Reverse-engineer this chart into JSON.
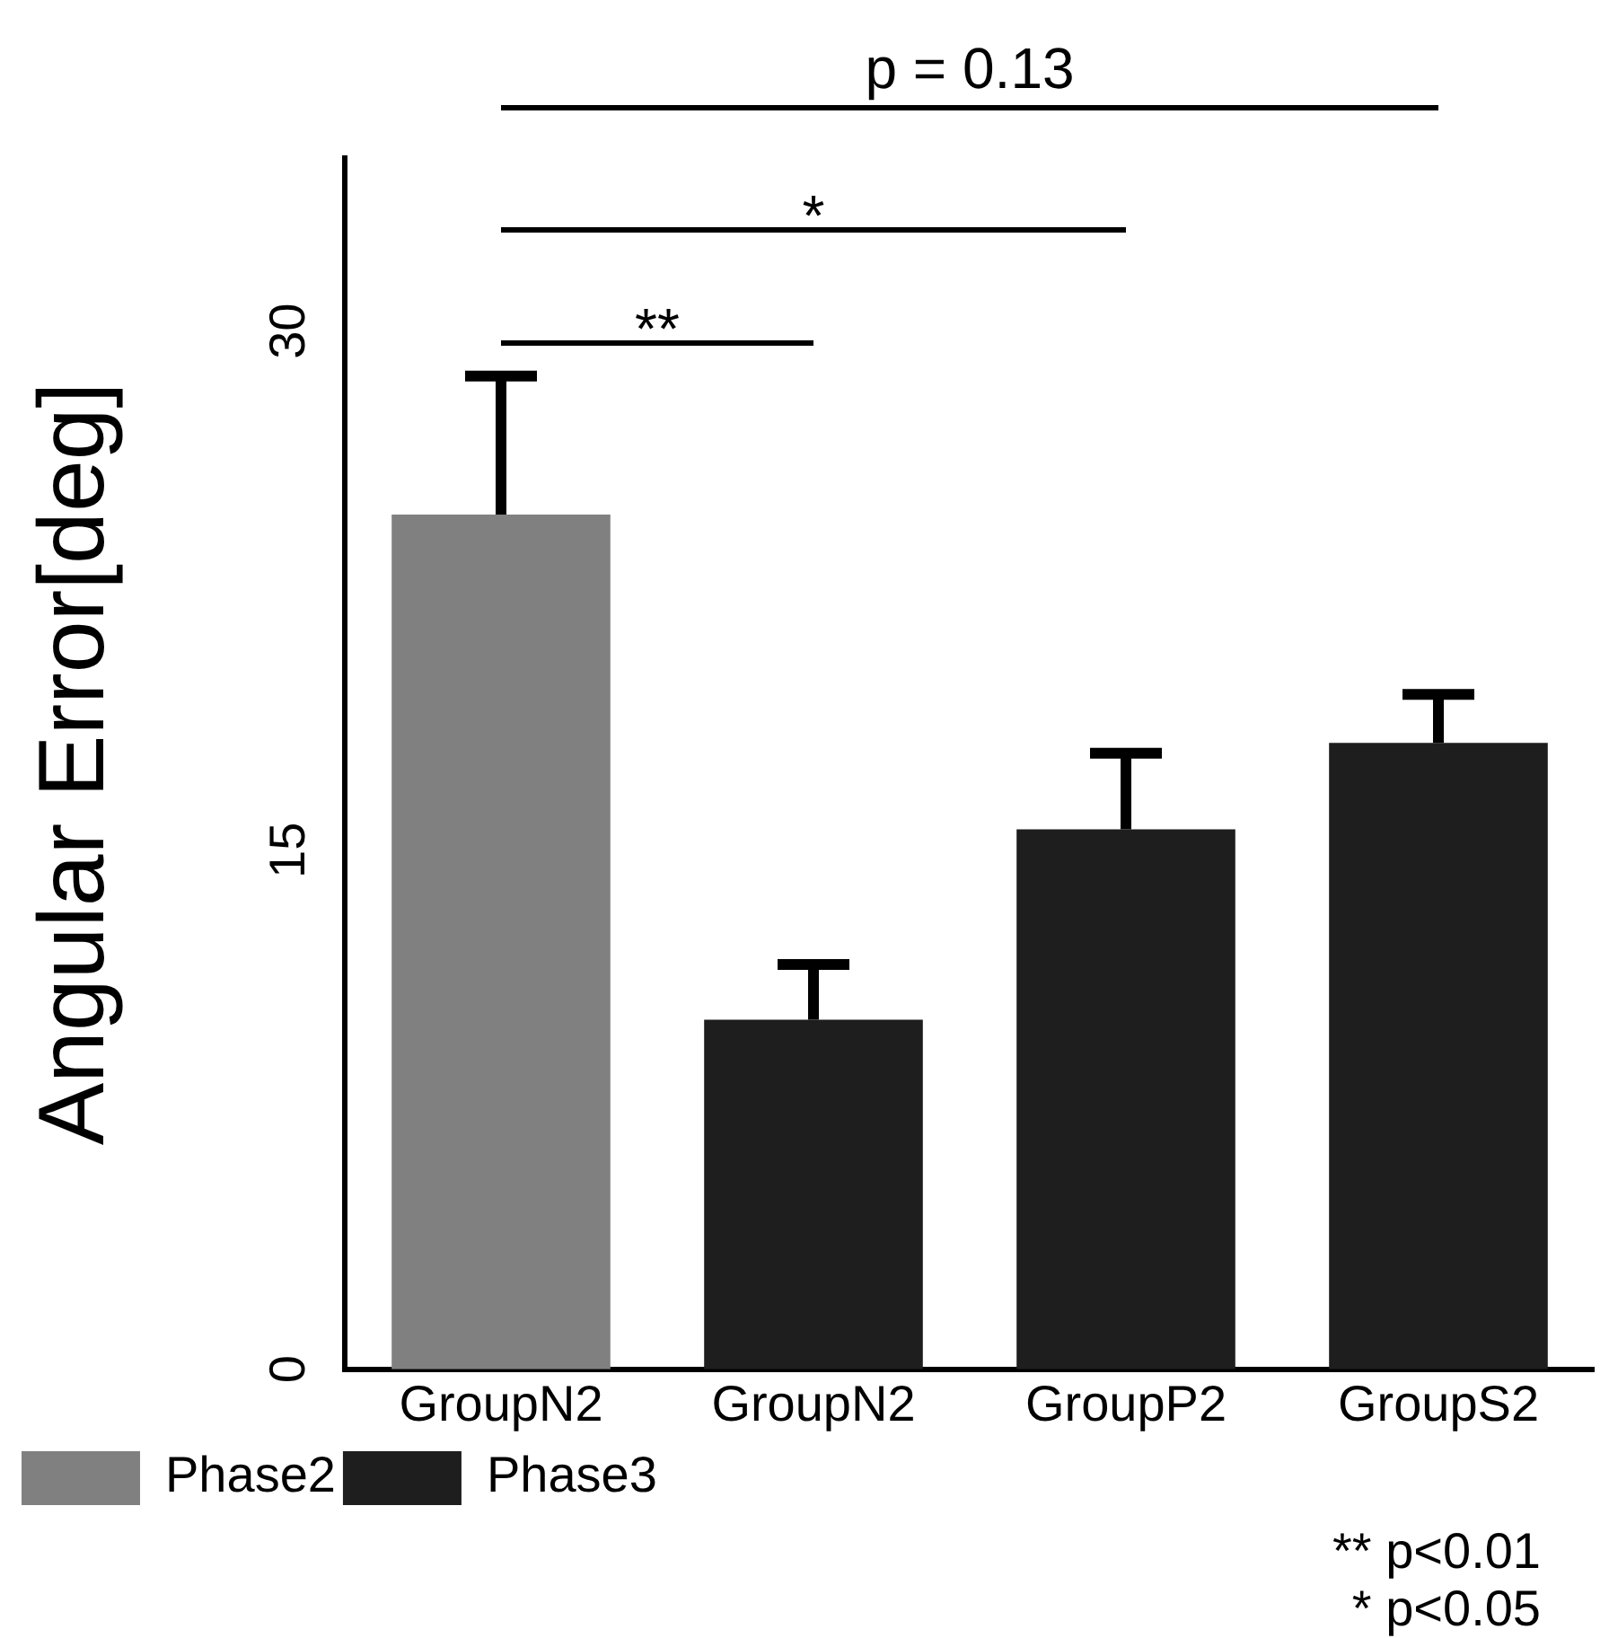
{
  "chart_data": {
    "type": "bar",
    "ylabel": "Angular Error[deg]",
    "categories": [
      "GroupN2",
      "GroupN2",
      "GroupP2",
      "GroupS2"
    ],
    "series": [
      {
        "name": "Phase2",
        "color": "#808080",
        "values": [
          24.7,
          null,
          null,
          null
        ],
        "errors": [
          [
            24.7,
            28.7
          ],
          null,
          null,
          null
        ]
      },
      {
        "name": "Phase3",
        "color": "#1e1e1e",
        "values": [
          null,
          10.1,
          15.6,
          18.1
        ],
        "errors": [
          null,
          [
            10.1,
            11.7
          ],
          [
            15.6,
            17.8
          ],
          [
            18.1,
            19.5
          ]
        ]
      }
    ],
    "stacked": true,
    "ylim": [
      0,
      35
    ],
    "yticks": [
      0,
      15,
      30
    ],
    "grid": false,
    "legend": "bottom left",
    "annotations": [
      "p = 0.13",
      "*",
      "**",
      "** p<0.01",
      "* p<0.05"
    ]
  }
}
